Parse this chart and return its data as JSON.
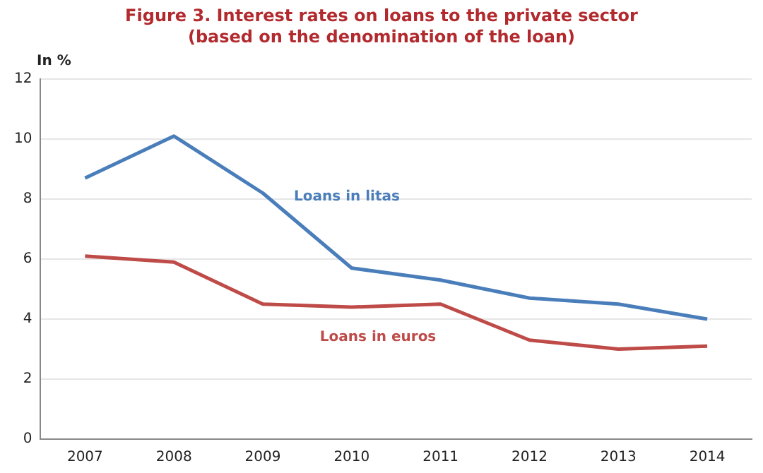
{
  "chart_data": {
    "type": "line",
    "title": "Figure 3. Interest rates on loans to the private sector\n(based on the denomination of the loan)",
    "ylabel": "In %",
    "categories": [
      "2007",
      "2008",
      "2009",
      "2010",
      "2011",
      "2012",
      "2013",
      "2014"
    ],
    "series": [
      {
        "name": "Loans in litas",
        "color": "#4a7ebb",
        "values": [
          8.7,
          10.1,
          8.2,
          5.7,
          5.3,
          4.7,
          4.5,
          4.0
        ]
      },
      {
        "name": "Loans in euros",
        "color": "#be4b48",
        "values": [
          6.1,
          5.9,
          4.5,
          4.4,
          4.5,
          3.3,
          3.0,
          3.1
        ]
      }
    ],
    "ylim": [
      0,
      12
    ],
    "yticks": [
      0,
      2,
      4,
      6,
      8,
      10,
      12
    ],
    "grid": "y",
    "legend": false,
    "marker": "none",
    "line_style": "solid"
  }
}
